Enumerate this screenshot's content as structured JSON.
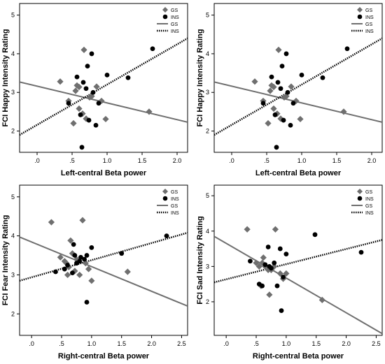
{
  "colors": {
    "gs": "#6f6f6f",
    "ins": "#000000",
    "frame": "#000000"
  },
  "legend": {
    "gs_label": "GS",
    "ins_label": "INS",
    "placement": "top-right"
  },
  "chart_data": [
    {
      "type": "scatter",
      "ylabel": "FCI Happy Intensity Rating",
      "xlabel": "Left-central Beta power",
      "xlim": [
        -0.25,
        2.15
      ],
      "ylim": [
        1.45,
        5.3
      ],
      "xticks": [
        0,
        0.5,
        1.0,
        1.5,
        2.0
      ],
      "xtick_labels": [
        ".0",
        ".5",
        "1.0",
        "1.5",
        "2.0"
      ],
      "yticks": [
        2,
        3,
        4,
        5
      ],
      "ytick_labels": [
        "2",
        "3",
        "4",
        "5"
      ],
      "grid": false,
      "series": [
        {
          "name": "GS",
          "marker": "diamond",
          "points": [
            [
              0.33,
              3.28
            ],
            [
              0.45,
              2.78
            ],
            [
              0.52,
              2.2
            ],
            [
              0.55,
              3.04
            ],
            [
              0.57,
              3.18
            ],
            [
              0.6,
              3.14
            ],
            [
              0.6,
              2.58
            ],
            [
              0.65,
              2.45
            ],
            [
              0.67,
              4.1
            ],
            [
              0.7,
              2.32
            ],
            [
              0.75,
              2.87
            ],
            [
              0.78,
              2.9
            ],
            [
              0.85,
              3.15
            ],
            [
              0.92,
              2.78
            ],
            [
              0.98,
              2.31
            ],
            [
              1.6,
              2.5
            ]
          ]
        },
        {
          "name": "INS",
          "marker": "circle",
          "points": [
            [
              0.45,
              2.72
            ],
            [
              0.57,
              3.4
            ],
            [
              0.62,
              2.42
            ],
            [
              0.64,
              1.58
            ],
            [
              0.66,
              3.26
            ],
            [
              0.7,
              3.1
            ],
            [
              0.72,
              3.68
            ],
            [
              0.74,
              2.28
            ],
            [
              0.78,
              4.0
            ],
            [
              0.8,
              3.0
            ],
            [
              0.84,
              2.15
            ],
            [
              0.88,
              2.72
            ],
            [
              1.0,
              3.45
            ],
            [
              1.3,
              3.38
            ],
            [
              1.65,
              4.13
            ]
          ]
        }
      ],
      "fit_lines": [
        {
          "name": "GS",
          "style": "solid",
          "x": [
            -0.25,
            2.15
          ],
          "y": [
            3.27,
            2.23
          ]
        },
        {
          "name": "INS",
          "style": "dotted",
          "x": [
            -0.25,
            2.15
          ],
          "y": [
            1.9,
            4.4
          ]
        }
      ]
    },
    {
      "type": "scatter",
      "ylabel": "FCI Happy Intensity Rating",
      "xlabel": "Left-central Beta power",
      "xlim": [
        -0.25,
        2.15
      ],
      "ylim": [
        1.45,
        5.3
      ],
      "xticks": [
        0,
        0.5,
        1.0,
        1.5,
        2.0
      ],
      "xtick_labels": [
        ".0",
        ".5",
        "1.0",
        "1.5",
        "2.0"
      ],
      "yticks": [
        2,
        3,
        4,
        5
      ],
      "ytick_labels": [
        "2",
        "3",
        "4",
        "5"
      ],
      "grid": false,
      "series": [
        {
          "name": "GS",
          "marker": "diamond",
          "points": [
            [
              0.33,
              3.28
            ],
            [
              0.45,
              2.78
            ],
            [
              0.52,
              2.2
            ],
            [
              0.55,
              3.04
            ],
            [
              0.57,
              3.18
            ],
            [
              0.6,
              3.14
            ],
            [
              0.6,
              2.58
            ],
            [
              0.65,
              2.45
            ],
            [
              0.67,
              4.1
            ],
            [
              0.7,
              2.32
            ],
            [
              0.75,
              2.87
            ],
            [
              0.78,
              2.9
            ],
            [
              0.85,
              3.15
            ],
            [
              0.92,
              2.78
            ],
            [
              0.98,
              2.31
            ],
            [
              1.6,
              2.5
            ]
          ]
        },
        {
          "name": "INS",
          "marker": "circle",
          "points": [
            [
              0.45,
              2.72
            ],
            [
              0.57,
              3.4
            ],
            [
              0.62,
              2.42
            ],
            [
              0.64,
              1.58
            ],
            [
              0.66,
              3.26
            ],
            [
              0.7,
              3.1
            ],
            [
              0.72,
              3.68
            ],
            [
              0.74,
              2.28
            ],
            [
              0.78,
              4.0
            ],
            [
              0.8,
              3.0
            ],
            [
              0.84,
              2.15
            ],
            [
              0.88,
              2.72
            ],
            [
              1.0,
              3.45
            ],
            [
              1.3,
              3.38
            ],
            [
              1.65,
              4.13
            ]
          ]
        }
      ],
      "fit_lines": [
        {
          "name": "GS",
          "style": "solid",
          "x": [
            -0.25,
            2.15
          ],
          "y": [
            3.27,
            2.23
          ]
        },
        {
          "name": "INS",
          "style": "dotted",
          "x": [
            -0.25,
            2.15
          ],
          "y": [
            1.9,
            4.4
          ]
        }
      ]
    },
    {
      "type": "scatter",
      "ylabel": "FCI Fear Intensity Rating",
      "xlabel": "Right-central Beta power",
      "xlim": [
        -0.2,
        2.6
      ],
      "ylim": [
        1.45,
        5.3
      ],
      "xticks": [
        0,
        0.5,
        1.0,
        1.5,
        2.0,
        2.5
      ],
      "xtick_labels": [
        ".0",
        ".5",
        "1.0",
        "1.5",
        "2.0",
        "2.5"
      ],
      "yticks": [
        2,
        3,
        4,
        5
      ],
      "ytick_labels": [
        "2",
        "3",
        "4",
        "5"
      ],
      "grid": false,
      "series": [
        {
          "name": "GS",
          "marker": "diamond",
          "points": [
            [
              0.33,
              4.35
            ],
            [
              0.48,
              3.45
            ],
            [
              0.55,
              3.35
            ],
            [
              0.58,
              3.3
            ],
            [
              0.6,
              3.0
            ],
            [
              0.62,
              3.2
            ],
            [
              0.65,
              3.88
            ],
            [
              0.68,
              3.55
            ],
            [
              0.72,
              3.1
            ],
            [
              0.75,
              3.4
            ],
            [
              0.8,
              3.0
            ],
            [
              0.85,
              4.4
            ],
            [
              0.9,
              3.3
            ],
            [
              0.95,
              3.15
            ],
            [
              1.0,
              2.85
            ],
            [
              1.6,
              3.08
            ]
          ]
        },
        {
          "name": "INS",
          "marker": "circle",
          "points": [
            [
              0.4,
              3.08
            ],
            [
              0.55,
              3.15
            ],
            [
              0.6,
              3.25
            ],
            [
              0.68,
              3.05
            ],
            [
              0.7,
              3.78
            ],
            [
              0.72,
              3.5
            ],
            [
              0.75,
              3.3
            ],
            [
              0.8,
              3.35
            ],
            [
              0.82,
              3.45
            ],
            [
              0.88,
              3.4
            ],
            [
              0.92,
              3.5
            ],
            [
              0.92,
              2.3
            ],
            [
              1.0,
              3.7
            ],
            [
              1.5,
              3.55
            ],
            [
              2.25,
              4.0
            ]
          ]
        }
      ],
      "fit_lines": [
        {
          "name": "GS",
          "style": "solid",
          "x": [
            -0.2,
            2.6
          ],
          "y": [
            3.97,
            2.2
          ]
        },
        {
          "name": "INS",
          "style": "dotted",
          "x": [
            -0.2,
            2.6
          ],
          "y": [
            2.85,
            4.08
          ]
        }
      ]
    },
    {
      "type": "scatter",
      "ylabel": "FCI Sad Intensity Rating",
      "xlabel": "Right-central Beta power",
      "xlim": [
        -0.2,
        2.6
      ],
      "ylim": [
        1.05,
        5.3
      ],
      "xticks": [
        0,
        0.5,
        1.0,
        1.5,
        2.0,
        2.5
      ],
      "xtick_labels": [
        ".0",
        ".5",
        "1.0",
        "1.5",
        "2.0",
        "2.5"
      ],
      "yticks": [
        2,
        3,
        4,
        5
      ],
      "ytick_labels": [
        "2",
        "3",
        "4",
        "5"
      ],
      "grid": false,
      "series": [
        {
          "name": "GS",
          "marker": "diamond",
          "points": [
            [
              0.35,
              4.05
            ],
            [
              0.5,
              3.1
            ],
            [
              0.55,
              3.0
            ],
            [
              0.58,
              2.45
            ],
            [
              0.6,
              3.1
            ],
            [
              0.62,
              3.25
            ],
            [
              0.65,
              3.0
            ],
            [
              0.7,
              2.9
            ],
            [
              0.72,
              2.2
            ],
            [
              0.75,
              2.9
            ],
            [
              0.8,
              3.0
            ],
            [
              0.82,
              4.05
            ],
            [
              0.9,
              2.8
            ],
            [
              0.95,
              2.65
            ],
            [
              1.0,
              2.8
            ],
            [
              1.6,
              2.05
            ]
          ]
        },
        {
          "name": "INS",
          "marker": "circle",
          "points": [
            [
              0.4,
              3.15
            ],
            [
              0.55,
              2.5
            ],
            [
              0.6,
              2.45
            ],
            [
              0.65,
              3.05
            ],
            [
              0.7,
              3.55
            ],
            [
              0.72,
              3.0
            ],
            [
              0.75,
              2.95
            ],
            [
              0.8,
              3.1
            ],
            [
              0.85,
              2.45
            ],
            [
              0.9,
              3.5
            ],
            [
              0.92,
              1.75
            ],
            [
              0.95,
              2.7
            ],
            [
              1.0,
              3.35
            ],
            [
              1.48,
              3.9
            ],
            [
              2.25,
              3.4
            ]
          ]
        }
      ],
      "fit_lines": [
        {
          "name": "GS",
          "style": "solid",
          "x": [
            -0.2,
            2.6
          ],
          "y": [
            3.85,
            1.1
          ]
        },
        {
          "name": "INS",
          "style": "dotted",
          "x": [
            -0.2,
            2.6
          ],
          "y": [
            2.55,
            3.75
          ]
        }
      ]
    }
  ]
}
